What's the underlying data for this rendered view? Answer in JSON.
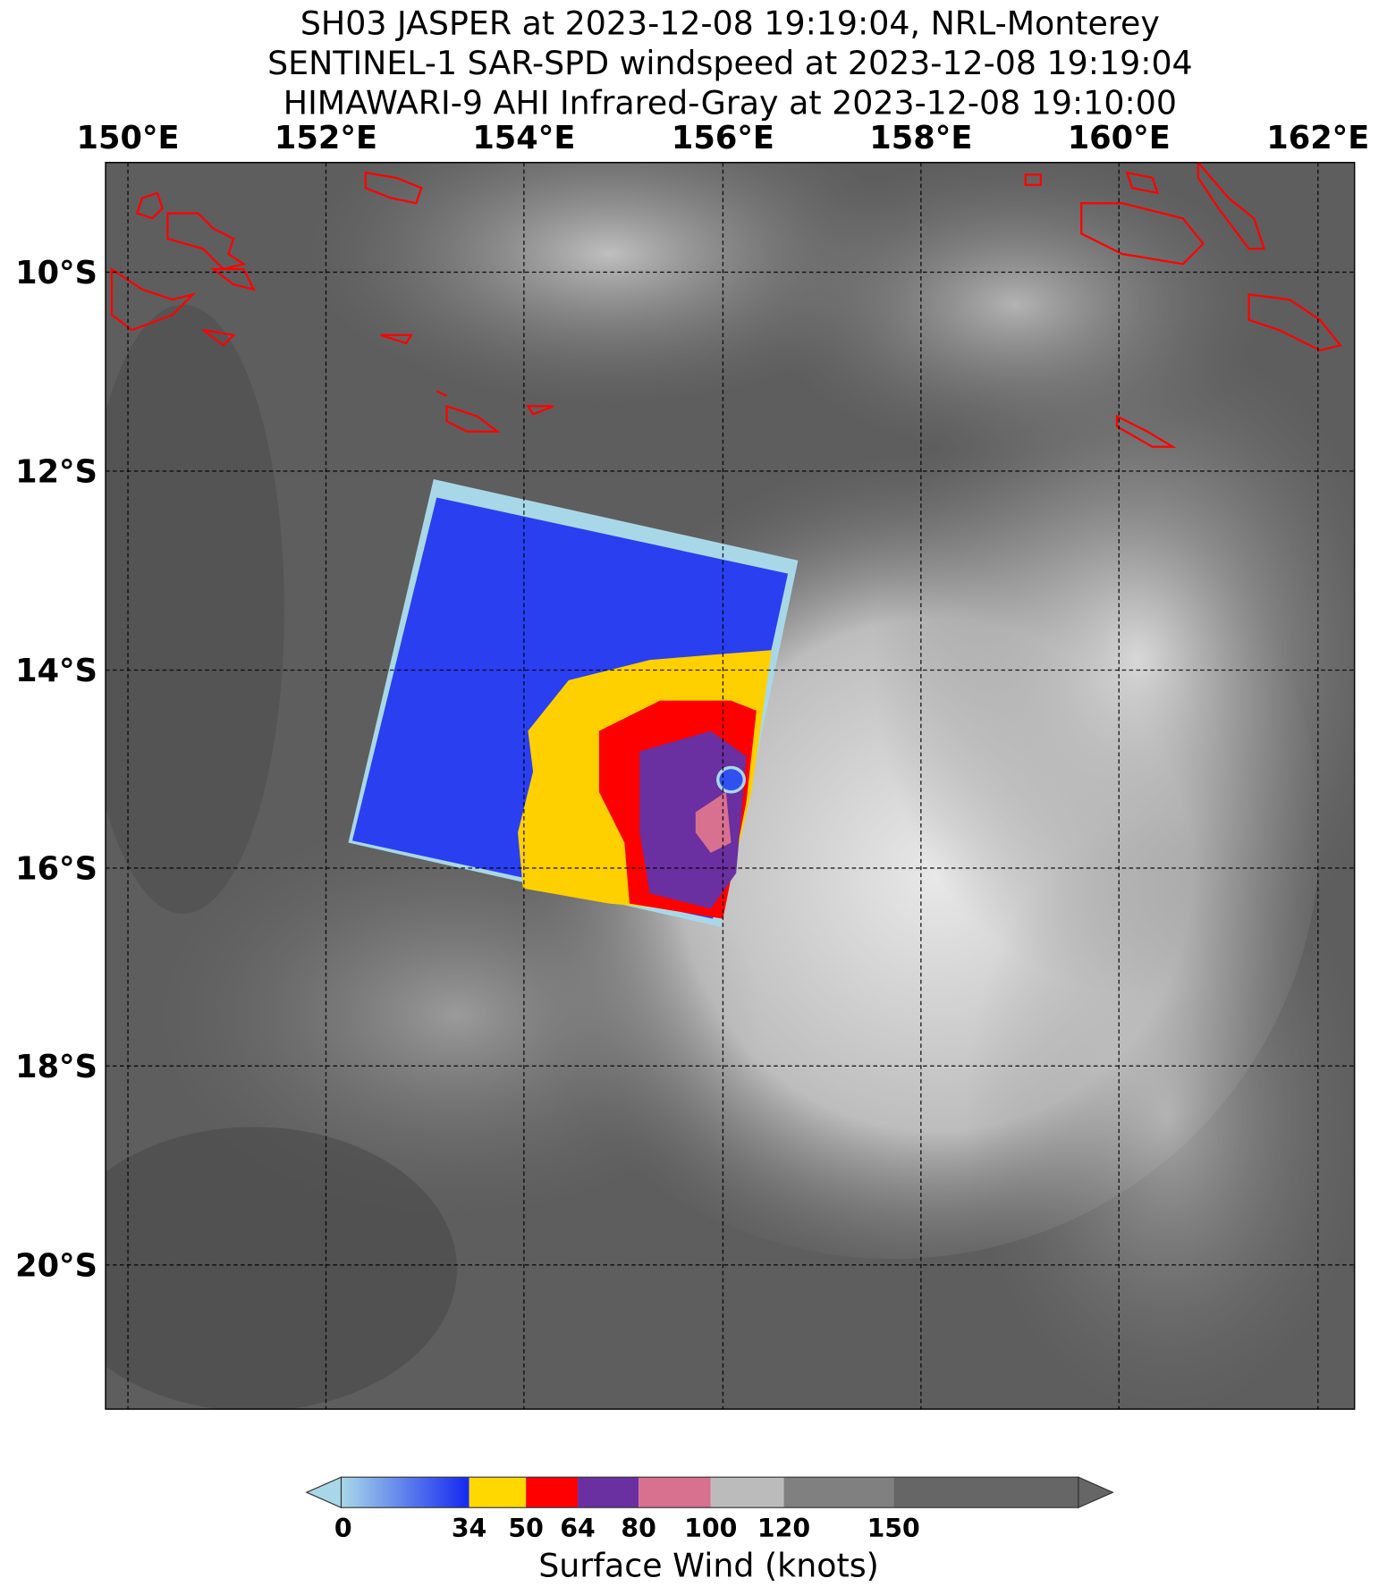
{
  "title": {
    "lines": [
      "SH03 JASPER at 2023-12-08 19:19:04, NRL-Monterey",
      "SENTINEL-1 SAR-SPD windspeed at 2023-12-08 19:19:04",
      "HIMAWARI-9 AHI Infrared-Gray at 2023-12-08 19:10:00"
    ]
  },
  "map": {
    "lon_labels": [
      "150°E",
      "152°E",
      "154°E",
      "156°E",
      "158°E",
      "160°E",
      "162°E"
    ],
    "lat_labels": [
      "10°S",
      "12°S",
      "14°S",
      "16°S",
      "18°S",
      "20°S"
    ]
  },
  "colorbar": {
    "tick_labels": [
      "0",
      "34",
      "50",
      "64",
      "80",
      "100",
      "120",
      "150"
    ],
    "label": "Surface Wind (knots)"
  }
}
